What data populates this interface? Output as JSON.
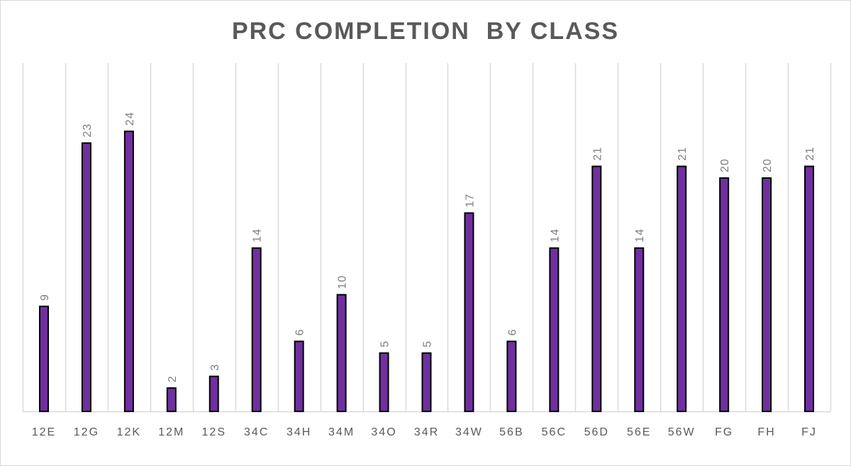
{
  "chart_data": {
    "type": "bar",
    "title": "PRC COMPLETION  BY CLASS",
    "categories": [
      "12E",
      "12G",
      "12K",
      "12M",
      "12S",
      "34C",
      "34H",
      "34M",
      "34O",
      "34R",
      "34W",
      "56B",
      "56C",
      "56D",
      "56E",
      "56W",
      "FG",
      "FH",
      "FJ"
    ],
    "values": [
      9,
      23,
      24,
      2,
      3,
      14,
      6,
      10,
      5,
      5,
      17,
      6,
      14,
      21,
      14,
      21,
      20,
      20,
      21
    ],
    "ylim": [
      0,
      30
    ],
    "xlabel": "",
    "ylabel": "",
    "grid": "vertical",
    "legend": "none",
    "data_labels": true,
    "bar_color": "#7030a0",
    "bar_border": "#000000"
  }
}
